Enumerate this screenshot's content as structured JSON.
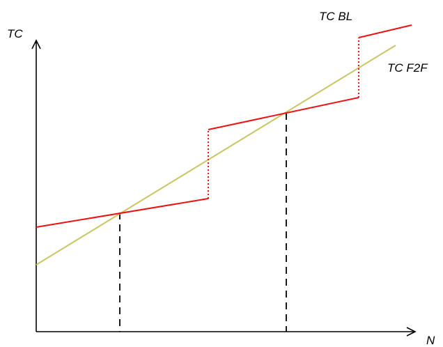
{
  "labels": {
    "y_axis": "TC",
    "x_axis": "N",
    "tc_bl": "TC BL",
    "tc_f2f": "TC F2F"
  },
  "colors": {
    "axis": "#000000",
    "tc_bl": "#ee1111",
    "tc_f2f": "#c8c664",
    "guide": "#000000"
  }
}
